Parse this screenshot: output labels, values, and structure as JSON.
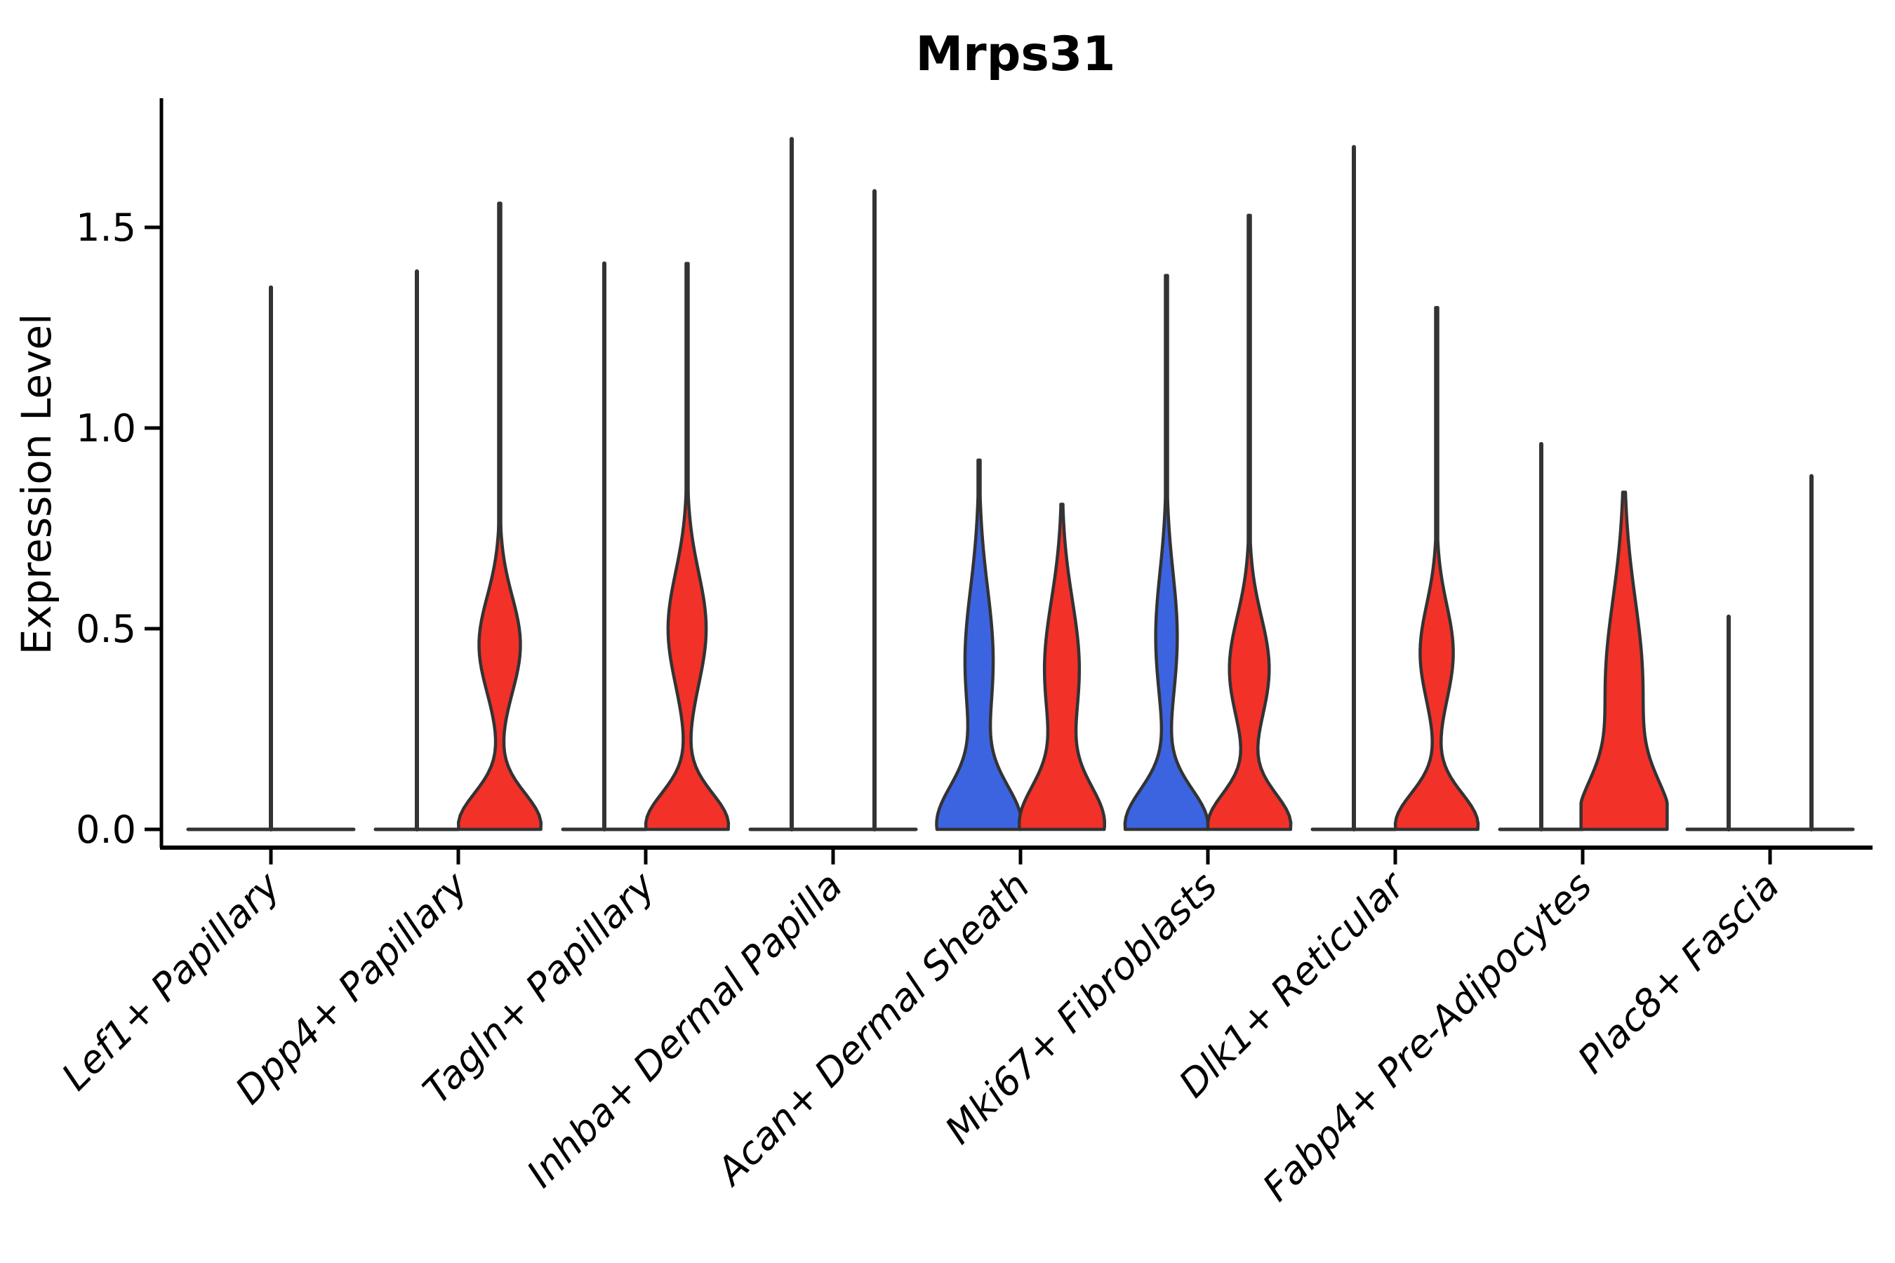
{
  "chart_data": {
    "type": "violin",
    "title": "Mrps31",
    "ylabel": "Expression Level",
    "xlabel": "",
    "ylim": [
      -0.06,
      1.78
    ],
    "grid": false,
    "legend": "none",
    "yticks": [
      {
        "value": 0.0,
        "label": "0.0"
      },
      {
        "value": 0.5,
        "label": "0.5"
      },
      {
        "value": 1.0,
        "label": "1.0"
      },
      {
        "value": 1.5,
        "label": "1.5"
      }
    ],
    "categories": [
      "Lef1+ Papillary",
      "Dpp4+ Papillary",
      "Tagln+ Papillary",
      "Inhba+ Dermal Papilla",
      "Acan+ Dermal Sheath",
      "Mki67+ Fibroblasts",
      "Dlk1+ Reticular",
      "Fabp4+ Pre-Adipocytes",
      "Plac8+ Fascia"
    ],
    "colors": {
      "split_left_fill": "#3D64E0",
      "split_right_fill": "#F23129",
      "violin_outline": "#333333",
      "axis": "#000000",
      "background": "#ffffff"
    },
    "violins": [
      {
        "category": "Lef1+ Papillary",
        "group": 0,
        "side": "center",
        "style": "flat",
        "color": null,
        "max_expression": 1.35,
        "width": 2
      },
      {
        "category": "Dpp4+ Papillary",
        "group": 1,
        "side": "left",
        "style": "flat",
        "color": null,
        "max_expression": 1.39,
        "width": 1
      },
      {
        "category": "Dpp4+ Papillary",
        "group": 1,
        "side": "right",
        "style": "density",
        "color": "#F23129",
        "max_expression": 1.56,
        "zero_peak_sigma": 0.08,
        "bulge": {
          "mu": 0.46,
          "sigma": 0.12,
          "amp": 0.5
        },
        "width": 1
      },
      {
        "category": "Tagln+ Papillary",
        "group": 2,
        "side": "left",
        "style": "flat",
        "color": null,
        "max_expression": 1.41,
        "width": 1
      },
      {
        "category": "Tagln+ Papillary",
        "group": 2,
        "side": "right",
        "style": "density",
        "color": "#F23129",
        "max_expression": 1.41,
        "zero_peak_sigma": 0.08,
        "bulge": {
          "mu": 0.5,
          "sigma": 0.14,
          "amp": 0.46
        },
        "width": 1
      },
      {
        "category": "Inhba+ Dermal Papilla",
        "group": 3,
        "side": "left",
        "style": "flat",
        "color": null,
        "max_expression": 1.72,
        "width": 1
      },
      {
        "category": "Inhba+ Dermal Papilla",
        "group": 3,
        "side": "right",
        "style": "flat",
        "color": null,
        "max_expression": 1.59,
        "width": 1
      },
      {
        "category": "Acan+ Dermal Sheath",
        "group": 4,
        "side": "left",
        "style": "density",
        "color": "#3D64E0",
        "max_expression": 0.92,
        "zero_peak_sigma": 0.1,
        "bulge": {
          "mu": 0.42,
          "sigma": 0.18,
          "amp": 0.34
        },
        "width": 1
      },
      {
        "category": "Acan+ Dermal Sheath",
        "group": 4,
        "side": "right",
        "style": "density",
        "color": "#F23129",
        "max_expression": 0.81,
        "zero_peak_sigma": 0.1,
        "bulge": {
          "mu": 0.4,
          "sigma": 0.17,
          "amp": 0.42
        },
        "width": 1
      },
      {
        "category": "Mki67+ Fibroblasts",
        "group": 5,
        "side": "left",
        "style": "density",
        "color": "#3D64E0",
        "max_expression": 1.38,
        "zero_peak_sigma": 0.09,
        "bulge": {
          "mu": 0.48,
          "sigma": 0.16,
          "amp": 0.26
        },
        "width": 1
      },
      {
        "category": "Mki67+ Fibroblasts",
        "group": 5,
        "side": "right",
        "style": "density",
        "color": "#F23129",
        "max_expression": 1.53,
        "zero_peak_sigma": 0.08,
        "bulge": {
          "mu": 0.4,
          "sigma": 0.13,
          "amp": 0.48
        },
        "width": 1
      },
      {
        "category": "Dlk1+ Reticular",
        "group": 6,
        "side": "left",
        "style": "flat",
        "color": null,
        "max_expression": 1.7,
        "width": 1
      },
      {
        "category": "Dlk1+ Reticular",
        "group": 6,
        "side": "right",
        "style": "density",
        "color": "#F23129",
        "max_expression": 1.3,
        "zero_peak_sigma": 0.08,
        "bulge": {
          "mu": 0.44,
          "sigma": 0.12,
          "amp": 0.4
        },
        "width": 1
      },
      {
        "category": "Fabp4+ Pre-Adipocytes",
        "group": 7,
        "side": "left",
        "style": "flat",
        "color": null,
        "max_expression": 0.96,
        "width": 1
      },
      {
        "category": "Fabp4+ Pre-Adipocytes",
        "group": 7,
        "side": "right",
        "style": "density",
        "color": "#F23129",
        "max_expression": 0.84,
        "zero_peak_sigma": 0.11,
        "bulge": {
          "mu": 0.36,
          "sigma": 0.21,
          "amp": 0.45
        },
        "width": 1
      },
      {
        "category": "Plac8+ Fascia",
        "group": 8,
        "side": "left",
        "style": "flat",
        "color": null,
        "max_expression": 0.53,
        "width": 1
      },
      {
        "category": "Plac8+ Fascia",
        "group": 8,
        "side": "right",
        "style": "flat",
        "color": null,
        "max_expression": 0.88,
        "width": 1
      }
    ]
  }
}
